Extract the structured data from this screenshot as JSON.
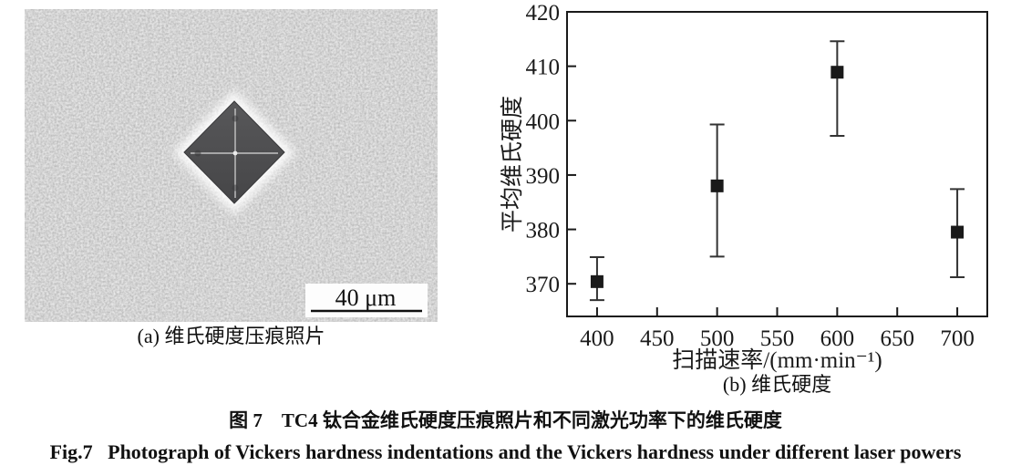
{
  "figure": {
    "caption_zh": "图 7　TC4 钛合金维氏硬度压痕照片和不同激光功率下的维氏硬度",
    "caption_en": "Fig.7   Photograph of Vickers hardness indentations and the Vickers hardness under different laser powers"
  },
  "panel_a": {
    "caption": "(a) 维氏硬度压痕照片",
    "scale_bar_label": "40 μm"
  },
  "panel_b": {
    "caption": "(b) 维氏硬度"
  },
  "chart_data": {
    "type": "scatter",
    "title": "",
    "x": [
      400,
      500,
      600,
      700
    ],
    "y": [
      370.4,
      388.0,
      408.9,
      379.5
    ],
    "y_err_low": [
      367.0,
      375.0,
      397.2,
      371.2
    ],
    "y_err_high": [
      374.9,
      399.3,
      414.6,
      387.4
    ],
    "xlabel": "扫描速率/(mm·min⁻¹)",
    "ylabel": "平均维氏硬度",
    "xlim": [
      375,
      725
    ],
    "ylim": [
      364,
      420
    ],
    "x_ticks": [
      400,
      450,
      500,
      550,
      600,
      650,
      700
    ],
    "y_ticks": [
      370,
      380,
      390,
      400,
      410,
      420
    ],
    "marker": "filled-square",
    "marker_color": "#1a1a1a",
    "error_color": "#333333",
    "axis_color": "#1a1a1a",
    "grid": false,
    "legend": "none"
  }
}
